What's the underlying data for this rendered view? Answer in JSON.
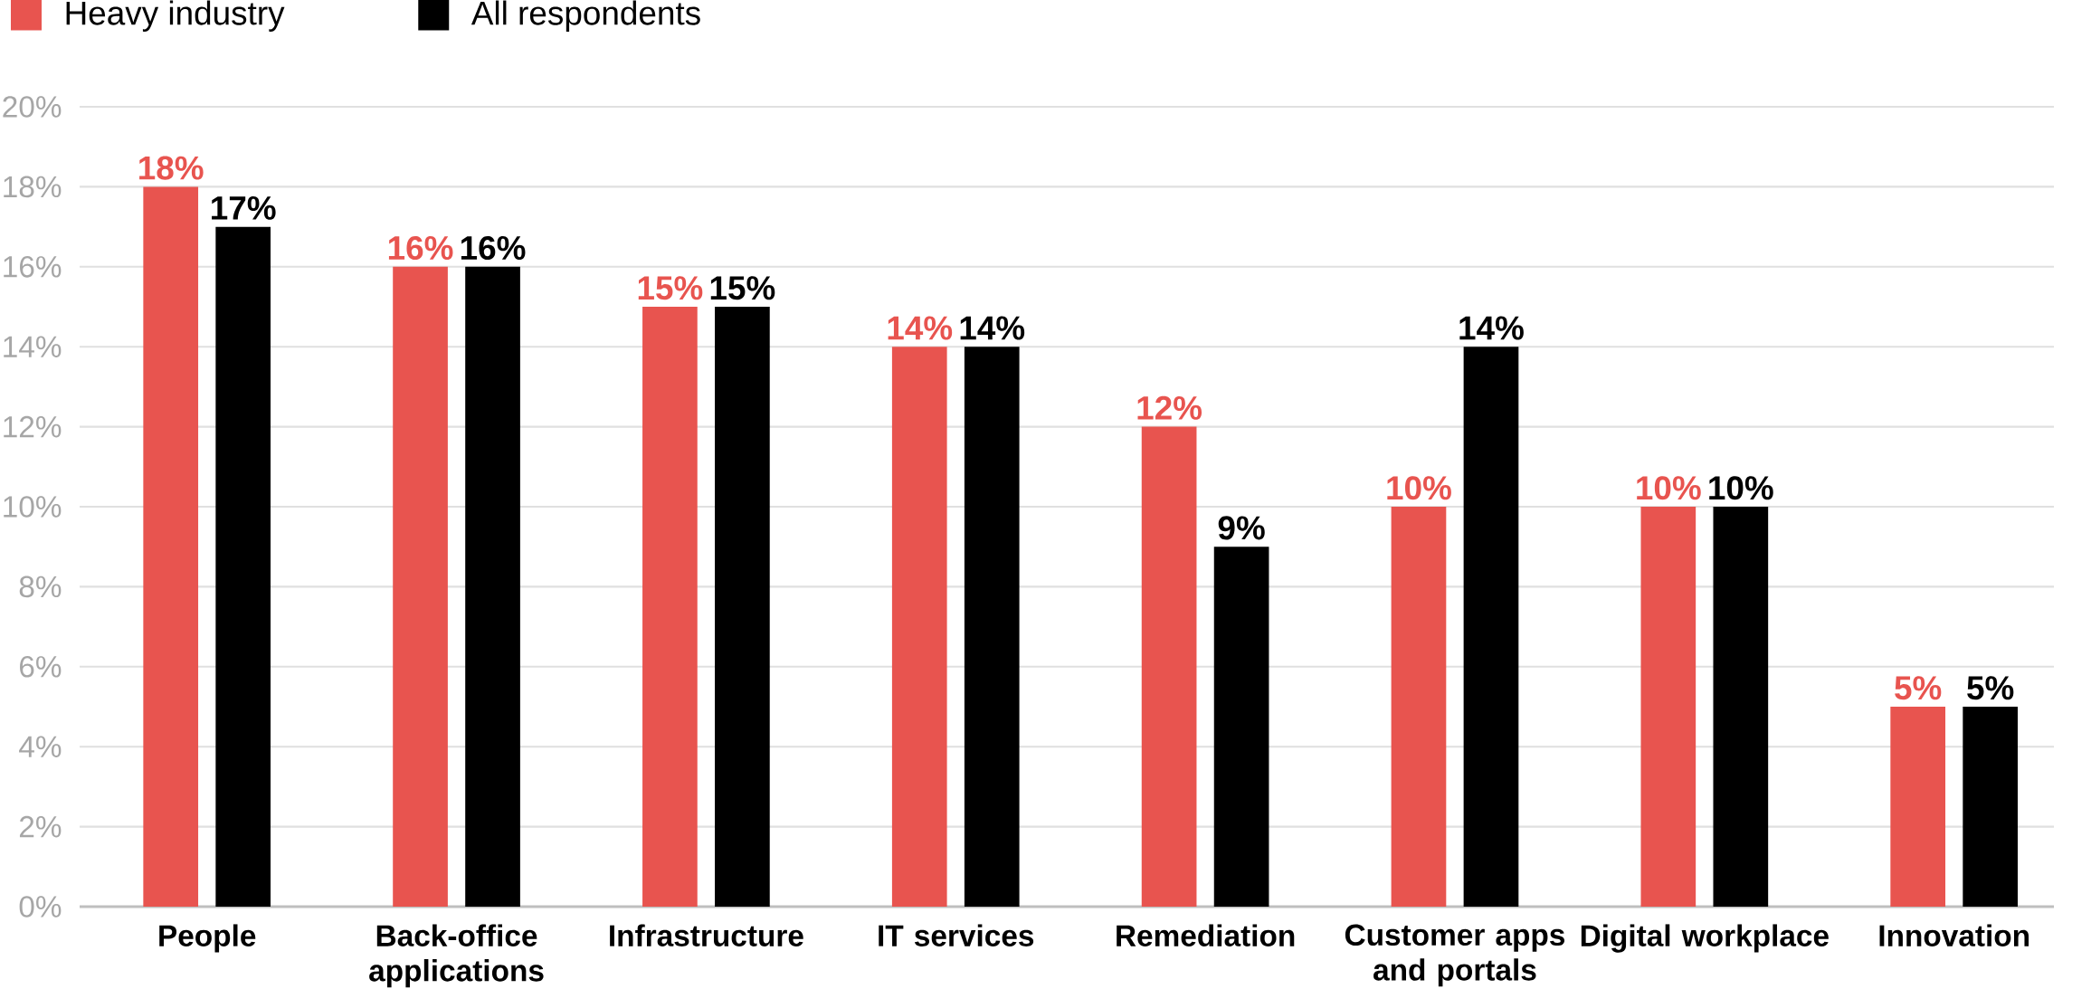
{
  "chart_data": {
    "type": "bar",
    "categories": [
      "People",
      "Back-office applications",
      "Infrastructure",
      "IT services",
      "Remediation",
      "Customer apps and portals",
      "Digital workplace",
      "Innovation"
    ],
    "series": [
      {
        "name": "Heavy industry",
        "color": "#e8544f",
        "values": [
          18,
          16,
          15,
          14,
          12,
          10,
          10,
          5
        ],
        "value_labels": [
          "18%",
          "16%",
          "15%",
          "14%",
          "12%",
          "10%",
          "10%",
          "5%"
        ]
      },
      {
        "name": "All respondents",
        "color": "#000000",
        "values": [
          17,
          16,
          15,
          14,
          9,
          14,
          10,
          5
        ],
        "value_labels": [
          "17%",
          "16%",
          "15%",
          "14%",
          "9%",
          "14%",
          "10%",
          "5%"
        ]
      }
    ],
    "ylim": [
      0,
      20
    ],
    "yticks": [
      {
        "value": 0,
        "label": "0%"
      },
      {
        "value": 2,
        "label": "2%"
      },
      {
        "value": 4,
        "label": "4%"
      },
      {
        "value": 6,
        "label": "6%"
      },
      {
        "value": 8,
        "label": "8%"
      },
      {
        "value": 10,
        "label": "10%"
      },
      {
        "value": 12,
        "label": "12%"
      },
      {
        "value": 14,
        "label": "14%"
      },
      {
        "value": 16,
        "label": "16%"
      },
      {
        "value": 18,
        "label": "18%"
      },
      {
        "value": 20,
        "label": "20%"
      }
    ],
    "grid": "y",
    "legend": "top left"
  }
}
